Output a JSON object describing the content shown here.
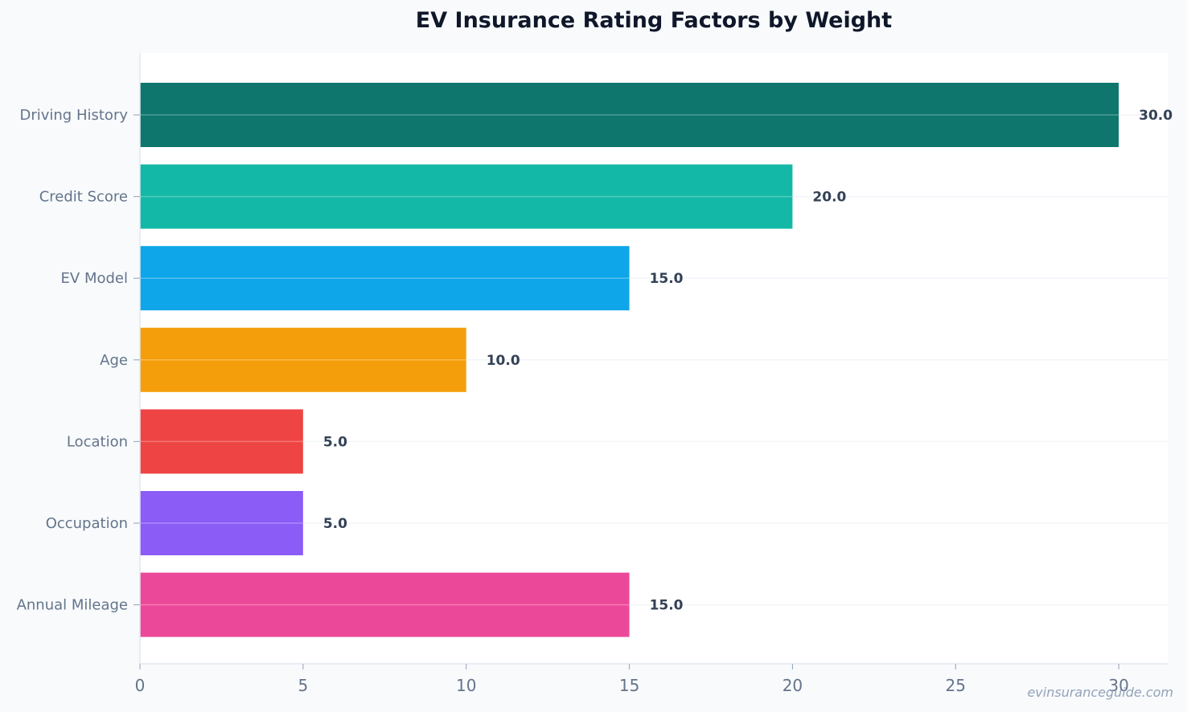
{
  "chart_data": {
    "type": "bar",
    "orientation": "horizontal",
    "title": "EV Insurance Rating Factors by Weight",
    "xlabel": "",
    "ylabel": "",
    "categories": [
      "Driving History",
      "Credit Score",
      "EV Model",
      "Age",
      "Location",
      "Occupation",
      "Annual Mileage"
    ],
    "values": [
      30.0,
      20.0,
      15.0,
      10.0,
      5.0,
      5.0,
      15.0
    ],
    "value_labels": [
      "30.0",
      "20.0",
      "15.0",
      "10.0",
      "5.0",
      "5.0",
      "15.0"
    ],
    "colors": [
      "#0f766e",
      "#14b8a6",
      "#0ea5e9",
      "#f59e0b",
      "#ef4444",
      "#8b5cf6",
      "#ec4899"
    ],
    "xlim": [
      0,
      31.5
    ],
    "xticks": [
      0,
      5,
      10,
      15,
      20,
      25,
      30
    ],
    "grid": "horizontal"
  },
  "watermark": "evinsuranceguide.com"
}
